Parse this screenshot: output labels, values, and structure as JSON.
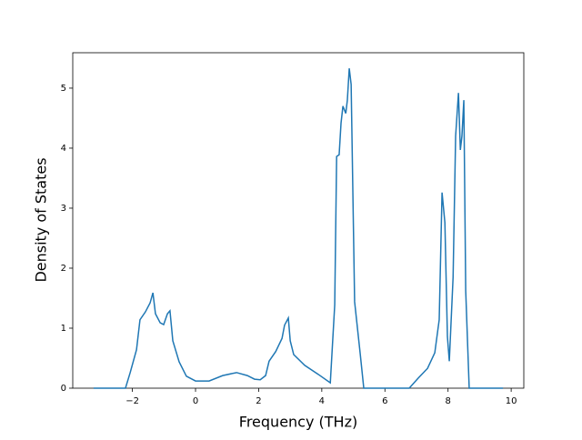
{
  "chart_data": {
    "type": "line",
    "x_label": "Frequency (THz)",
    "y_label": "Density of States",
    "x": [
      -3.23,
      -2.22,
      -2.07,
      -1.87,
      -1.76,
      -1.59,
      -1.44,
      -1.35,
      -1.27,
      -1.12,
      -1.01,
      -0.89,
      -0.81,
      -0.72,
      -0.52,
      -0.29,
      0,
      0.43,
      0.86,
      1.3,
      1.64,
      1.87,
      2.05,
      2.22,
      2.33,
      2.54,
      2.74,
      2.82,
      2.94,
      3.0,
      3.11,
      3.46,
      3.89,
      4.27,
      4.41,
      4.47,
      4.55,
      4.61,
      4.67,
      4.76,
      4.81,
      4.87,
      4.93,
      5.04,
      5.22,
      5.33,
      6.77,
      7.06,
      7.35,
      7.58,
      7.72,
      7.81,
      7.9,
      7.98,
      8.04,
      8.16,
      8.24,
      8.33,
      8.39,
      8.44,
      8.5,
      8.56,
      8.67,
      9.74
    ],
    "series": [
      {
        "color": "#1f77b4",
        "values": [
          0,
          0,
          0.26,
          0.64,
          1.14,
          1.27,
          1.42,
          1.59,
          1.24,
          1.09,
          1.06,
          1.24,
          1.29,
          0.79,
          0.44,
          0.2,
          0.12,
          0.12,
          0.21,
          0.26,
          0.21,
          0.15,
          0.14,
          0.21,
          0.45,
          0.61,
          0.83,
          1.05,
          1.17,
          0.79,
          0.56,
          0.38,
          0.23,
          0.09,
          1.39,
          3.86,
          3.89,
          4.42,
          4.7,
          4.58,
          4.8,
          5.33,
          5.06,
          1.44,
          0.56,
          0,
          0,
          0.17,
          0.33,
          0.59,
          1.14,
          3.26,
          2.76,
          0.86,
          0.45,
          1.85,
          4.2,
          4.92,
          3.97,
          4.2,
          4.8,
          1.62,
          0,
          0
        ]
      }
    ],
    "xlim": [
      -3.89,
      10.4
    ],
    "ylim": [
      0,
      5.59
    ],
    "xticks": [
      {
        "value": -2,
        "label": "−2"
      },
      0,
      2,
      4,
      6,
      8,
      10
    ],
    "yticks": [
      0,
      1,
      2,
      3,
      4,
      5
    ]
  }
}
